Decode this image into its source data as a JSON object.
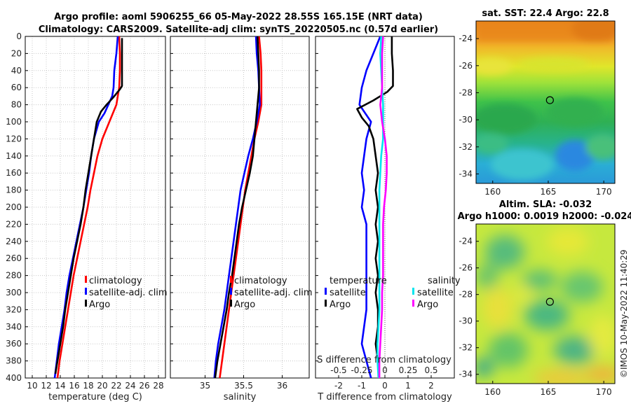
{
  "title": {
    "line1": "Argo profile: aoml 5906255_66 05-May-2022 28.55S 165.15E (NRT data)",
    "line2": "Climatology: CARS2009. Satellite-adj clim: synTS_20220505.nc (0.57d earlier)"
  },
  "map_sst": {
    "title": "sat. SST: 22.4 Argo: 22.8"
  },
  "map_sla": {
    "title_line1": "Altim. SLA: -0.032",
    "title_line2": "Argo h1000: 0.0019 h2000: -0.024"
  },
  "timestamp": "©IMOS 10-May-2022 11:40:29",
  "colors": {
    "climatology": "#ff0000",
    "satellite": "#0000ff",
    "argo": "#000000",
    "salinity_sat": "#00e5ee",
    "salinity_argo": "#ff00ff"
  },
  "chart_data": [
    {
      "type": "line",
      "name": "temperature-profile",
      "xlabel": "temperature (deg C)",
      "ylabel": "",
      "xlim": [
        9,
        29
      ],
      "ylim": [
        400,
        0
      ],
      "xticks": [
        "10",
        "12",
        "14",
        "16",
        "18",
        "20",
        "22",
        "24",
        "26",
        "28"
      ],
      "yticks": [
        "0",
        "20",
        "40",
        "60",
        "80",
        "100",
        "120",
        "140",
        "160",
        "180",
        "200",
        "220",
        "240",
        "260",
        "280",
        "300",
        "320",
        "340",
        "360",
        "380",
        "400"
      ],
      "legend": [
        "climatology",
        "satellite-adj. clim",
        "Argo"
      ],
      "series": [
        {
          "name": "climatology",
          "color": "#ff0000",
          "points": [
            [
              22.4,
              0
            ],
            [
              22.5,
              20
            ],
            [
              22.5,
              40
            ],
            [
              22.4,
              60
            ],
            [
              22.0,
              80
            ],
            [
              21.0,
              100
            ],
            [
              20.0,
              120
            ],
            [
              19.3,
              140
            ],
            [
              18.8,
              160
            ],
            [
              18.3,
              180
            ],
            [
              17.9,
              200
            ],
            [
              17.4,
              220
            ],
            [
              16.9,
              240
            ],
            [
              16.4,
              260
            ],
            [
              15.9,
              280
            ],
            [
              15.5,
              300
            ],
            [
              15.1,
              320
            ],
            [
              14.7,
              340
            ],
            [
              14.3,
              360
            ],
            [
              13.9,
              380
            ],
            [
              13.6,
              400
            ]
          ]
        },
        {
          "name": "satellite-adj. clim",
          "color": "#0000ff",
          "points": [
            [
              22.2,
              0
            ],
            [
              22.0,
              20
            ],
            [
              21.7,
              40
            ],
            [
              21.6,
              60
            ],
            [
              21.4,
              70
            ],
            [
              20.3,
              90
            ],
            [
              19.5,
              100
            ],
            [
              18.8,
              120
            ],
            [
              18.4,
              140
            ],
            [
              18.1,
              160
            ],
            [
              17.7,
              180
            ],
            [
              17.3,
              200
            ],
            [
              16.8,
              220
            ],
            [
              16.3,
              240
            ],
            [
              15.8,
              260
            ],
            [
              15.3,
              280
            ],
            [
              14.9,
              300
            ],
            [
              14.6,
              320
            ],
            [
              14.2,
              340
            ],
            [
              13.8,
              360
            ],
            [
              13.5,
              380
            ],
            [
              13.2,
              400
            ]
          ]
        },
        {
          "name": "Argo",
          "color": "#000000",
          "points": [
            [
              22.8,
              2
            ],
            [
              22.8,
              20
            ],
            [
              22.8,
              40
            ],
            [
              22.8,
              58
            ],
            [
              22.5,
              62
            ],
            [
              21.5,
              72
            ],
            [
              20.6,
              80
            ],
            [
              19.8,
              88
            ],
            [
              19.2,
              100
            ],
            [
              18.8,
              120
            ],
            [
              18.4,
              140
            ],
            [
              18.0,
              160
            ],
            [
              17.6,
              180
            ],
            [
              17.3,
              200
            ],
            [
              16.9,
              220
            ],
            [
              16.4,
              240
            ],
            [
              15.9,
              260
            ],
            [
              15.5,
              280
            ],
            [
              15.1,
              300
            ],
            [
              14.7,
              320
            ],
            [
              14.4,
              340
            ],
            [
              14.0,
              360
            ],
            [
              13.6,
              380
            ],
            [
              13.3,
              395
            ]
          ]
        }
      ]
    },
    {
      "type": "line",
      "name": "salinity-profile",
      "xlabel": "salinity",
      "xlim": [
        34.55,
        36.35
      ],
      "ylim": [
        400,
        0
      ],
      "xticks": [
        "35",
        "35.5",
        "36"
      ],
      "legend": [
        "climatology",
        "satellite-adj. clim",
        "Argo"
      ],
      "series": [
        {
          "name": "climatology",
          "color": "#ff0000",
          "points": [
            [
              35.7,
              0
            ],
            [
              35.72,
              20
            ],
            [
              35.73,
              40
            ],
            [
              35.73,
              60
            ],
            [
              35.73,
              80
            ],
            [
              35.69,
              100
            ],
            [
              35.64,
              120
            ],
            [
              35.6,
              140
            ],
            [
              35.56,
              160
            ],
            [
              35.52,
              180
            ],
            [
              35.49,
              200
            ],
            [
              35.46,
              220
            ],
            [
              35.43,
              240
            ],
            [
              35.4,
              260
            ],
            [
              35.37,
              280
            ],
            [
              35.34,
              300
            ],
            [
              35.31,
              320
            ],
            [
              35.28,
              340
            ],
            [
              35.25,
              360
            ],
            [
              35.22,
              380
            ],
            [
              35.19,
              400
            ]
          ]
        },
        {
          "name": "satellite-adj. clim",
          "color": "#0000ff",
          "points": [
            [
              35.66,
              0
            ],
            [
              35.67,
              20
            ],
            [
              35.69,
              40
            ],
            [
              35.7,
              60
            ],
            [
              35.71,
              80
            ],
            [
              35.67,
              100
            ],
            [
              35.62,
              120
            ],
            [
              35.56,
              140
            ],
            [
              35.51,
              160
            ],
            [
              35.46,
              180
            ],
            [
              35.43,
              200
            ],
            [
              35.4,
              220
            ],
            [
              35.37,
              240
            ],
            [
              35.34,
              260
            ],
            [
              35.31,
              280
            ],
            [
              35.28,
              300
            ],
            [
              35.25,
              320
            ],
            [
              35.21,
              340
            ],
            [
              35.17,
              360
            ],
            [
              35.14,
              380
            ],
            [
              35.12,
              400
            ]
          ]
        },
        {
          "name": "Argo",
          "color": "#000000",
          "points": [
            [
              35.68,
              0
            ],
            [
              35.69,
              20
            ],
            [
              35.7,
              40
            ],
            [
              35.7,
              60
            ],
            [
              35.68,
              80
            ],
            [
              35.66,
              100
            ],
            [
              35.64,
              120
            ],
            [
              35.62,
              140
            ],
            [
              35.58,
              160
            ],
            [
              35.53,
              180
            ],
            [
              35.48,
              200
            ],
            [
              35.44,
              220
            ],
            [
              35.41,
              240
            ],
            [
              35.38,
              260
            ],
            [
              35.35,
              280
            ],
            [
              35.31,
              300
            ],
            [
              35.28,
              320
            ],
            [
              35.24,
              340
            ],
            [
              35.2,
              360
            ],
            [
              35.16,
              380
            ],
            [
              35.13,
              400
            ]
          ]
        }
      ]
    },
    {
      "type": "line",
      "name": "difference-profile",
      "xlabel": "T difference from climatology",
      "xlabel2": "S difference from climatology",
      "xlim": [
        -3,
        3
      ],
      "ylim": [
        400,
        0
      ],
      "xticks": [
        "-2",
        "-1",
        "0",
        "1",
        "2"
      ],
      "xticks2": [
        "-0.5",
        "-0.25",
        "0",
        "0.25",
        "0.5"
      ],
      "legend_headers": [
        "temperature",
        "salinity"
      ],
      "legend": [
        "satellite",
        "Argo",
        "satellite",
        "Argo"
      ],
      "series": [
        {
          "name": "temperature satellite",
          "color": "#0000ff",
          "points": [
            [
              -0.2,
              0
            ],
            [
              -0.5,
              20
            ],
            [
              -0.8,
              40
            ],
            [
              -1.0,
              60
            ],
            [
              -1.1,
              80
            ],
            [
              -0.6,
              100
            ],
            [
              -0.8,
              120
            ],
            [
              -0.9,
              140
            ],
            [
              -1.0,
              160
            ],
            [
              -0.9,
              180
            ],
            [
              -1.0,
              200
            ],
            [
              -0.8,
              220
            ],
            [
              -0.8,
              240
            ],
            [
              -0.8,
              260
            ],
            [
              -0.8,
              280
            ],
            [
              -0.8,
              300
            ],
            [
              -0.8,
              320
            ],
            [
              -0.9,
              340
            ],
            [
              -1.0,
              360
            ],
            [
              -0.8,
              380
            ],
            [
              -0.6,
              400
            ]
          ]
        },
        {
          "name": "temperature Argo",
          "color": "#000000",
          "points": [
            [
              0.3,
              0
            ],
            [
              0.3,
              20
            ],
            [
              0.35,
              40
            ],
            [
              0.35,
              58
            ],
            [
              0.1,
              65
            ],
            [
              -0.5,
              75
            ],
            [
              -1.2,
              85
            ],
            [
              -1.0,
              95
            ],
            [
              -0.7,
              105
            ],
            [
              -0.5,
              120
            ],
            [
              -0.4,
              140
            ],
            [
              -0.3,
              160
            ],
            [
              -0.4,
              180
            ],
            [
              -0.3,
              200
            ],
            [
              -0.4,
              220
            ],
            [
              -0.3,
              240
            ],
            [
              -0.4,
              260
            ],
            [
              -0.3,
              280
            ],
            [
              -0.4,
              300
            ],
            [
              -0.3,
              320
            ],
            [
              -0.3,
              340
            ],
            [
              -0.4,
              360
            ],
            [
              -0.3,
              380
            ],
            [
              -0.25,
              395
            ]
          ]
        },
        {
          "name": "salinity satellite",
          "color": "#00e5ee",
          "points": [
            [
              -0.04,
              0
            ],
            [
              -0.05,
              20
            ],
            [
              -0.04,
              40
            ],
            [
              -0.03,
              60
            ],
            [
              -0.02,
              80
            ],
            [
              -0.02,
              100
            ],
            [
              -0.02,
              120
            ],
            [
              -0.04,
              140
            ],
            [
              -0.05,
              160
            ],
            [
              -0.06,
              180
            ],
            [
              -0.06,
              200
            ],
            [
              -0.06,
              220
            ],
            [
              -0.06,
              240
            ],
            [
              -0.06,
              260
            ],
            [
              -0.06,
              280
            ],
            [
              -0.06,
              300
            ],
            [
              -0.06,
              320
            ],
            [
              -0.07,
              340
            ],
            [
              -0.08,
              360
            ],
            [
              -0.08,
              380
            ],
            [
              -0.07,
              400
            ]
          ]
        },
        {
          "name": "salinity Argo",
          "color": "#ff00ff",
          "points": [
            [
              -0.02,
              0
            ],
            [
              -0.03,
              20
            ],
            [
              -0.03,
              40
            ],
            [
              -0.03,
              60
            ],
            [
              -0.05,
              80
            ],
            [
              -0.03,
              100
            ],
            [
              0.0,
              120
            ],
            [
              0.02,
              140
            ],
            [
              0.02,
              160
            ],
            [
              0.01,
              180
            ],
            [
              -0.01,
              200
            ],
            [
              -0.02,
              220
            ],
            [
              -0.02,
              240
            ],
            [
              -0.02,
              260
            ],
            [
              -0.02,
              280
            ],
            [
              -0.03,
              300
            ],
            [
              -0.03,
              320
            ],
            [
              -0.04,
              340
            ],
            [
              -0.05,
              360
            ],
            [
              -0.06,
              380
            ],
            [
              -0.06,
              400
            ]
          ]
        }
      ]
    },
    {
      "type": "heatmap",
      "name": "sst-map",
      "title": "sat. SST: 22.4 Argo: 22.8",
      "xlim": [
        158.5,
        171
      ],
      "ylim": [
        -34.7,
        -22.7
      ],
      "xticks": [
        "160",
        "165",
        "170"
      ],
      "yticks": [
        "-24",
        "-26",
        "-28",
        "-30",
        "-32",
        "-34"
      ],
      "argo_position": {
        "lon": 165.15,
        "lat": -28.55
      }
    },
    {
      "type": "heatmap",
      "name": "sla-map",
      "title": "Altim. SLA: -0.032",
      "xlim": [
        158.5,
        171
      ],
      "ylim": [
        -34.7,
        -22.7
      ],
      "xticks": [
        "160",
        "165",
        "170"
      ],
      "yticks": [
        "-24",
        "-26",
        "-28",
        "-30",
        "-32",
        "-34"
      ],
      "argo_position": {
        "lon": 165.15,
        "lat": -28.55
      }
    }
  ]
}
